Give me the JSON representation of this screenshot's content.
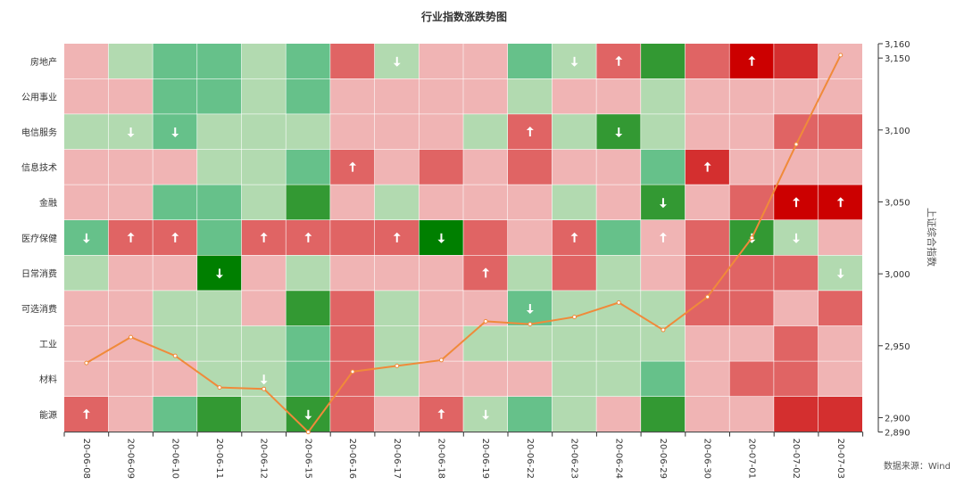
{
  "chart_data": {
    "type": "heatmap",
    "title": "行业指数涨跌势图",
    "categories": [
      "20-06-08",
      "20-06-09",
      "20-06-10",
      "20-06-11",
      "20-06-12",
      "20-06-15",
      "20-06-16",
      "20-06-17",
      "20-06-18",
      "20-06-19",
      "20-06-22",
      "20-06-23",
      "20-06-24",
      "20-06-29",
      "20-06-30",
      "20-07-01",
      "20-07-02",
      "20-07-03"
    ],
    "industries": [
      "房地产",
      "公用事业",
      "电信服务",
      "信息技术",
      "金融",
      "医疗保健",
      "日常消费",
      "可选消费",
      "工业",
      "材料",
      "能源"
    ],
    "levels": [
      [
        -1,
        1,
        2,
        2,
        1,
        2,
        -3,
        1,
        -1,
        -1,
        2,
        1,
        -3,
        3,
        -3,
        -5,
        -4,
        -1
      ],
      [
        -1,
        -1,
        2,
        2,
        1,
        2,
        -1,
        -1,
        -1,
        -1,
        1,
        -1,
        -1,
        1,
        -1,
        -1,
        -1,
        -1
      ],
      [
        1,
        1,
        2,
        1,
        1,
        1,
        -1,
        -1,
        -1,
        1,
        -3,
        1,
        3,
        1,
        -1,
        -1,
        -3,
        -3
      ],
      [
        -1,
        -1,
        -1,
        1,
        1,
        2,
        -3,
        -1,
        -3,
        -1,
        -3,
        -1,
        -1,
        2,
        -4,
        -1,
        -1,
        -1
      ],
      [
        -1,
        -1,
        2,
        2,
        1,
        3,
        -1,
        1,
        -1,
        -1,
        -1,
        1,
        -1,
        3,
        -1,
        -3,
        -5,
        -5
      ],
      [
        2,
        -3,
        -3,
        2,
        -3,
        -3,
        -3,
        -3,
        4,
        -3,
        -1,
        -3,
        2,
        -1,
        -3,
        3,
        1,
        -1
      ],
      [
        1,
        -1,
        -1,
        4,
        -1,
        1,
        -1,
        -1,
        -1,
        -3,
        1,
        -3,
        1,
        -1,
        -3,
        -3,
        -3,
        1
      ],
      [
        -1,
        -1,
        1,
        1,
        -1,
        3,
        -3,
        1,
        -1,
        -1,
        2,
        1,
        1,
        1,
        -3,
        -3,
        -1,
        -3
      ],
      [
        -1,
        -1,
        1,
        1,
        1,
        2,
        -3,
        1,
        -1,
        1,
        1,
        1,
        1,
        1,
        -1,
        -1,
        -3,
        -1
      ],
      [
        -1,
        -1,
        -1,
        1,
        1,
        2,
        -3,
        1,
        -1,
        -1,
        -1,
        1,
        1,
        2,
        -1,
        -3,
        -3,
        -1
      ],
      [
        -3,
        -1,
        2,
        3,
        1,
        3,
        -3,
        -1,
        -3,
        1,
        2,
        1,
        -1,
        3,
        -1,
        -1,
        -4,
        -4
      ]
    ],
    "arrows": [
      [
        0,
        0,
        0,
        0,
        0,
        0,
        0,
        -1,
        0,
        0,
        0,
        -1,
        1,
        0,
        0,
        1,
        0,
        0
      ],
      [
        0,
        0,
        0,
        0,
        0,
        0,
        0,
        0,
        0,
        0,
        0,
        0,
        0,
        0,
        0,
        0,
        0,
        0
      ],
      [
        0,
        -1,
        -1,
        0,
        0,
        0,
        0,
        0,
        0,
        0,
        1,
        0,
        -1,
        0,
        0,
        0,
        0,
        0
      ],
      [
        0,
        0,
        0,
        0,
        0,
        0,
        1,
        0,
        0,
        0,
        0,
        0,
        0,
        0,
        1,
        0,
        0,
        0
      ],
      [
        0,
        0,
        0,
        0,
        0,
        0,
        0,
        0,
        0,
        0,
        0,
        0,
        0,
        -1,
        0,
        0,
        1,
        1
      ],
      [
        -1,
        1,
        1,
        0,
        1,
        1,
        0,
        1,
        -1,
        0,
        0,
        1,
        0,
        1,
        0,
        -1,
        -1,
        0
      ],
      [
        0,
        0,
        0,
        -1,
        0,
        0,
        0,
        0,
        0,
        1,
        0,
        0,
        0,
        0,
        0,
        0,
        0,
        -1
      ],
      [
        0,
        0,
        0,
        0,
        0,
        0,
        0,
        0,
        0,
        0,
        -1,
        0,
        0,
        0,
        0,
        0,
        0,
        0
      ],
      [
        0,
        0,
        0,
        0,
        0,
        0,
        0,
        0,
        0,
        0,
        0,
        0,
        0,
        0,
        0,
        0,
        0,
        0
      ],
      [
        0,
        0,
        0,
        0,
        -1,
        0,
        0,
        0,
        0,
        0,
        0,
        0,
        0,
        0,
        0,
        0,
        0,
        0
      ],
      [
        1,
        0,
        0,
        0,
        0,
        -1,
        0,
        0,
        1,
        -1,
        0,
        0,
        0,
        0,
        0,
        0,
        0,
        0
      ]
    ],
    "series": [
      {
        "values": [
          2938,
          2956,
          2943,
          2921,
          2920,
          2890,
          2932,
          2936,
          2940,
          2967,
          2965,
          2970,
          2980,
          2961,
          2984,
          3025,
          3090,
          3152
        ]
      }
    ],
    "ylabel_right": "上证综合指数",
    "ylim_right": [
      2890,
      3160
    ],
    "right_ticks": [
      2890,
      2900,
      2950,
      3000,
      3050,
      3100,
      3150,
      3160
    ],
    "source": "数据来源：Wind",
    "colors": {
      "up_5": "#cc0000",
      "up_4": "#d42f2f",
      "up_3": "#e06464",
      "up_1": "#f0b4b4",
      "down_1": "#b2dab0",
      "down_2": "#66c18a",
      "down_3": "#339933",
      "down_4": "#007f00",
      "line": "#f08a3a",
      "arrow": "#ffffff"
    }
  }
}
